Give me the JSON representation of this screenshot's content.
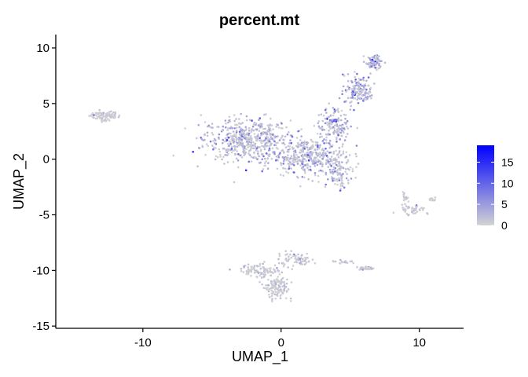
{
  "chart_data": {
    "type": "scatter",
    "title": "percent.mt",
    "xlabel": "UMAP_1",
    "ylabel": "UMAP_2",
    "xlim": [
      -16.3,
      13.2
    ],
    "ylim": [
      -15.2,
      11.2
    ],
    "x_ticks": [
      -10,
      0,
      10
    ],
    "x_tick_labels": [
      "-10",
      "0",
      "10"
    ],
    "y_ticks": [
      10,
      5,
      0,
      -5,
      -10,
      -15
    ],
    "y_tick_labels": [
      "10",
      "5",
      "0",
      "-5",
      "-10",
      "-15"
    ],
    "grid": false,
    "color_scale": {
      "low": "#d3d3d3",
      "high": "#0000ff",
      "range": [
        0,
        19
      ],
      "breaks": [
        15,
        10,
        5,
        0
      ],
      "break_labels": [
        "15",
        "10",
        "5",
        "0"
      ],
      "placement": "right"
    },
    "clusters": [
      {
        "center": [
          -12.8,
          3.9
        ],
        "spread": [
          0.9,
          0.35
        ],
        "n": 90,
        "value_mean": 1.5
      },
      {
        "center": [
          -2.5,
          1.8
        ],
        "spread": [
          2.6,
          1.6
        ],
        "n": 520,
        "value_mean": 3.5
      },
      {
        "center": [
          2.0,
          0.2
        ],
        "spread": [
          2.2,
          1.4
        ],
        "n": 380,
        "value_mean": 4.5
      },
      {
        "center": [
          3.8,
          3.0
        ],
        "spread": [
          1.0,
          1.2
        ],
        "n": 140,
        "value_mean": 5.5
      },
      {
        "center": [
          5.6,
          6.2
        ],
        "spread": [
          0.9,
          1.1
        ],
        "n": 150,
        "value_mean": 5.0
      },
      {
        "center": [
          6.7,
          8.7
        ],
        "spread": [
          0.5,
          0.6
        ],
        "n": 80,
        "value_mean": 6.0
      },
      {
        "center": [
          4.2,
          -1.3
        ],
        "spread": [
          0.8,
          1.0
        ],
        "n": 90,
        "value_mean": 3.0
      },
      {
        "center": [
          -0.3,
          -11.5
        ],
        "spread": [
          0.7,
          1.0
        ],
        "n": 140,
        "value_mean": 1.5
      },
      {
        "center": [
          -1.5,
          -10.0
        ],
        "spread": [
          1.2,
          0.5
        ],
        "n": 90,
        "value_mean": 1.8
      },
      {
        "center": [
          1.0,
          -9.0
        ],
        "spread": [
          1.0,
          0.5
        ],
        "n": 70,
        "value_mean": 1.8
      },
      {
        "center": [
          4.5,
          -9.2
        ],
        "spread": [
          0.7,
          0.15
        ],
        "n": 18,
        "value_mean": 1.5
      },
      {
        "center": [
          6.2,
          -9.8
        ],
        "spread": [
          0.5,
          0.12
        ],
        "n": 35,
        "value_mean": 2.0
      },
      {
        "center": [
          9.5,
          -4.6
        ],
        "spread": [
          0.8,
          0.4
        ],
        "n": 40,
        "value_mean": 1.5
      },
      {
        "center": [
          9.0,
          -3.4
        ],
        "spread": [
          0.3,
          0.5
        ],
        "n": 15,
        "value_mean": 1.5
      },
      {
        "center": [
          11.0,
          -3.6
        ],
        "spread": [
          0.3,
          0.1
        ],
        "n": 10,
        "value_mean": 1.5
      }
    ]
  }
}
